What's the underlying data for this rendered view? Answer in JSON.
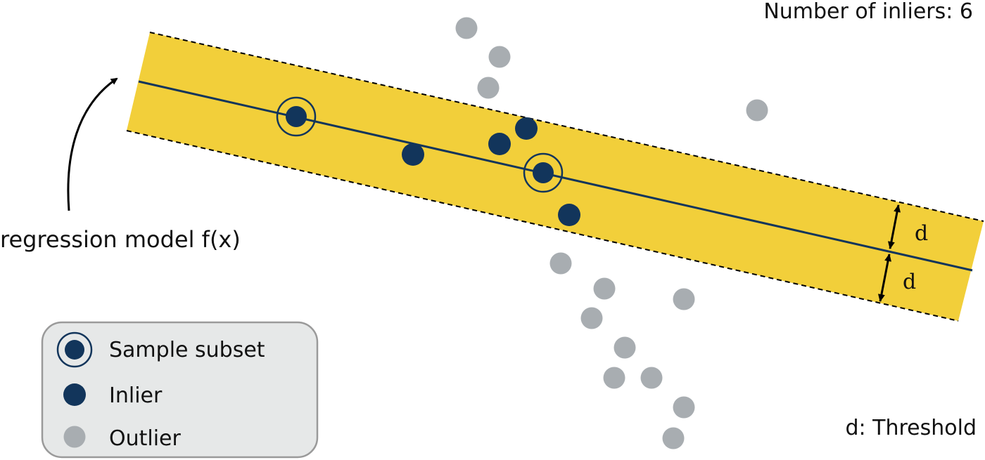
{
  "texts": {
    "inliers_count": "Number of inliers: 6",
    "model_label": "regression model f(x)",
    "threshold_label": "d: Threshold",
    "d_upper": "d",
    "d_lower": "d"
  },
  "legend": {
    "sample_subset": "Sample subset",
    "inlier": "Inlier",
    "outlier": "Outlier"
  },
  "colors": {
    "band": "#F2CF3A",
    "inlier": "#12355B",
    "outlier": "#A8ADB1",
    "legend_bg": "#E6E8E8",
    "legend_border": "#9A9A9A",
    "arrow": "#000000"
  }
}
